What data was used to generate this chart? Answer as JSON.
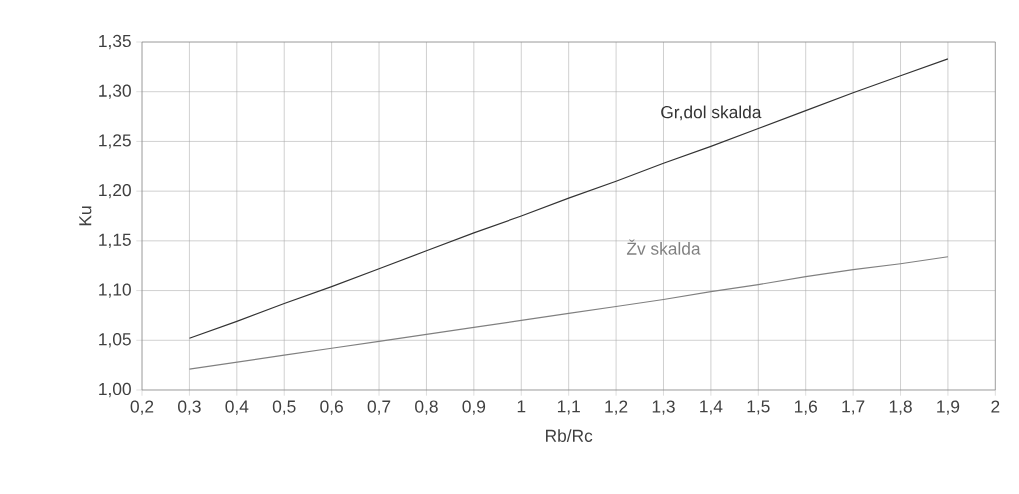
{
  "chart_data": {
    "type": "line",
    "xlabel": "Rb/Rc",
    "ylabel": "Ku",
    "xlim": [
      0.2,
      2
    ],
    "ylim": [
      1.0,
      1.35
    ],
    "xticks": [
      {
        "value": 0.2,
        "label": "0,2"
      },
      {
        "value": 0.3,
        "label": "0,3"
      },
      {
        "value": 0.4,
        "label": "0,4"
      },
      {
        "value": 0.5,
        "label": "0,5"
      },
      {
        "value": 0.6,
        "label": "0,6"
      },
      {
        "value": 0.7,
        "label": "0,7"
      },
      {
        "value": 0.8,
        "label": "0,8"
      },
      {
        "value": 0.9,
        "label": "0,9"
      },
      1,
      {
        "value": 1.1,
        "label": "1,1"
      },
      {
        "value": 1.2,
        "label": "1,2"
      },
      {
        "value": 1.3,
        "label": "1,3"
      },
      {
        "value": 1.4,
        "label": "1,4"
      },
      {
        "value": 1.5,
        "label": "1,5"
      },
      {
        "value": 1.6,
        "label": "1,6"
      },
      {
        "value": 1.7,
        "label": "1,7"
      },
      {
        "value": 1.8,
        "label": "1,8"
      },
      {
        "value": 1.9,
        "label": "1,9"
      },
      2
    ],
    "yticks": [
      {
        "value": 1.0,
        "label": "1,00"
      },
      {
        "value": 1.05,
        "label": "1,05"
      },
      {
        "value": 1.1,
        "label": "1,10"
      },
      {
        "value": 1.15,
        "label": "1,15"
      },
      {
        "value": 1.2,
        "label": "1,20"
      },
      {
        "value": 1.25,
        "label": "1,25"
      },
      {
        "value": 1.3,
        "label": "1,30"
      },
      {
        "value": 1.35,
        "label": "1,35"
      }
    ],
    "grid": true,
    "legend": false,
    "marker": "none",
    "line_style": "solid",
    "x": [
      0.3,
      0.4,
      0.5,
      0.6,
      0.7,
      0.8,
      0.9,
      1.0,
      1.1,
      1.2,
      1.3,
      1.4,
      1.5,
      1.6,
      1.7,
      1.8,
      1.9
    ],
    "series": [
      {
        "name": "Gr,dol skalda",
        "color": "#333333",
        "values": [
          1.052,
          1.069,
          1.087,
          1.104,
          1.122,
          1.14,
          1.158,
          1.175,
          1.193,
          1.21,
          1.228,
          1.245,
          1.263,
          1.281,
          1.299,
          1.316,
          1.333
        ]
      },
      {
        "name": "Žv skalda",
        "color": "#808080",
        "values": [
          1.021,
          1.028,
          1.035,
          1.042,
          1.049,
          1.056,
          1.063,
          1.07,
          1.077,
          1.084,
          1.091,
          1.099,
          1.106,
          1.114,
          1.121,
          1.127,
          1.134
        ]
      }
    ]
  }
}
